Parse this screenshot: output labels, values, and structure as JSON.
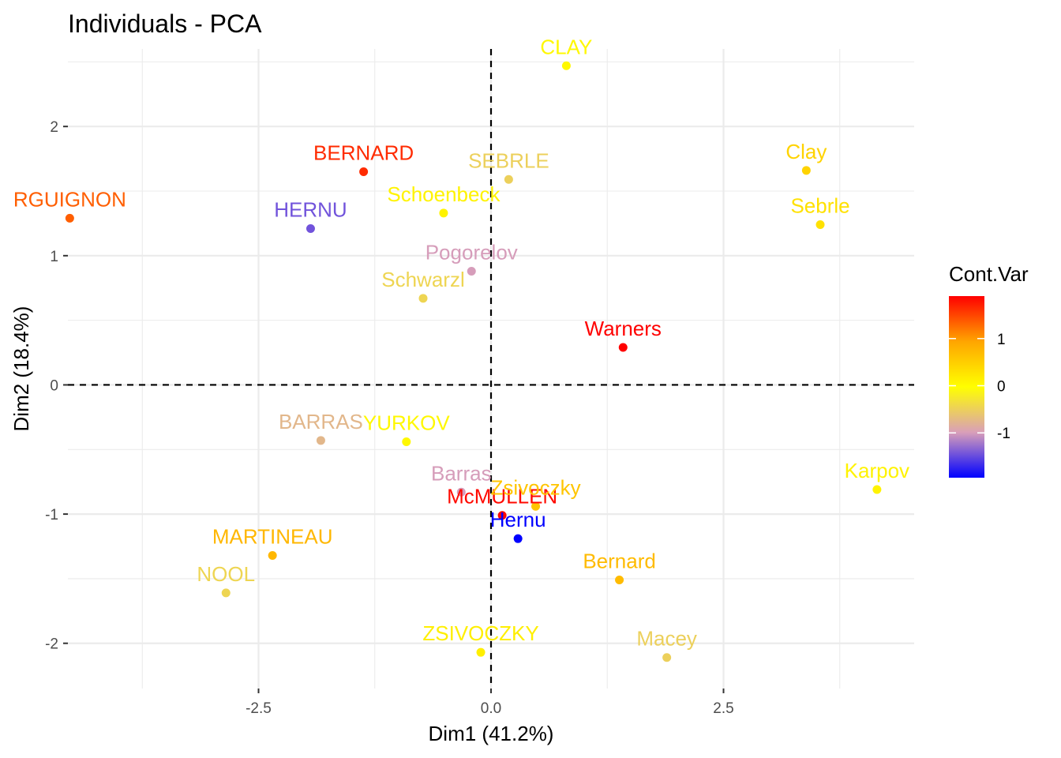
{
  "chart_data": {
    "type": "scatter",
    "title": "Individuals - PCA",
    "xlabel": "Dim1 (41.2%)",
    "ylabel": "Dim2 (18.4%)",
    "xlim": [
      -4.55,
      4.55
    ],
    "ylim": [
      -2.35,
      2.6
    ],
    "x_ticks": [
      -2.5,
      0.0,
      2.5
    ],
    "x_tick_labels": [
      "-2.5",
      "0.0",
      "2.5"
    ],
    "y_ticks": [
      -2,
      -1,
      0,
      1,
      2
    ],
    "y_tick_labels": [
      "-2",
      "-1",
      "0",
      "1",
      "2"
    ],
    "reference_lines": {
      "x": 0,
      "y": 0,
      "style": "dashed"
    },
    "grid": true,
    "legend": {
      "title": "Cont.Var",
      "position": "right",
      "range": [
        -1.95,
        1.9
      ],
      "ticks": [
        -1,
        0,
        1
      ],
      "tick_labels": [
        "-1",
        "0",
        "1"
      ],
      "colors": [
        "#0000ff",
        "#d99fb9",
        "#ffff00",
        "#ffa500",
        "#ff0000"
      ]
    },
    "points": [
      {
        "label": "SEBRLE",
        "x": 0.19,
        "y": 1.59,
        "value": -0.5
      },
      {
        "label": "CLAY",
        "x": 0.81,
        "y": 2.47,
        "value": 0.05
      },
      {
        "label": "BERNARD",
        "x": -1.37,
        "y": 1.65,
        "value": 1.65
      },
      {
        "label": "YURKOV",
        "x": -0.91,
        "y": -0.44,
        "value": 0.05
      },
      {
        "label": "ZSIVOCZKY",
        "x": -0.11,
        "y": -2.07,
        "value": 0.15
      },
      {
        "label": "McMULLEN",
        "x": 0.12,
        "y": -1.01,
        "value": 1.85
      },
      {
        "label": "MARTINEAU",
        "x": -2.35,
        "y": -1.32,
        "value": 0.75
      },
      {
        "label": "HERNU",
        "x": -1.94,
        "y": 1.21,
        "value": -1.45
      },
      {
        "label": "BARRAS",
        "x": -1.83,
        "y": -0.43,
        "value": -0.75
      },
      {
        "label": "NOOL",
        "x": -2.85,
        "y": -1.61,
        "value": -0.45
      },
      {
        "label": "RGUIGNON",
        "x": -4.53,
        "y": 1.29,
        "value": 1.35
      },
      {
        "label": "Sebrle",
        "x": 3.54,
        "y": 1.24,
        "value": 0.3
      },
      {
        "label": "Clay",
        "x": 3.39,
        "y": 1.66,
        "value": 0.45
      },
      {
        "label": "Karpov",
        "x": 4.15,
        "y": -0.81,
        "value": 0.1
      },
      {
        "label": "Macey",
        "x": 1.89,
        "y": -2.11,
        "value": -0.5
      },
      {
        "label": "Warners",
        "x": 1.42,
        "y": 0.29,
        "value": 1.9
      },
      {
        "label": "Zsivoczky",
        "x": 0.48,
        "y": -0.94,
        "value": 0.6
      },
      {
        "label": "Hernu",
        "x": 0.29,
        "y": -1.19,
        "value": -1.95
      },
      {
        "label": "Bernard",
        "x": 1.38,
        "y": -1.51,
        "value": 0.7
      },
      {
        "label": "Schwarzl",
        "x": -0.73,
        "y": 0.67,
        "value": -0.45
      },
      {
        "label": "Pogorelov",
        "x": -0.21,
        "y": 0.88,
        "value": -1.0
      },
      {
        "label": "Schoenbeck",
        "x": -0.51,
        "y": 1.33,
        "value": 0.1
      },
      {
        "label": "Barras",
        "x": -0.32,
        "y": -0.83,
        "value": -1.0
      }
    ]
  }
}
